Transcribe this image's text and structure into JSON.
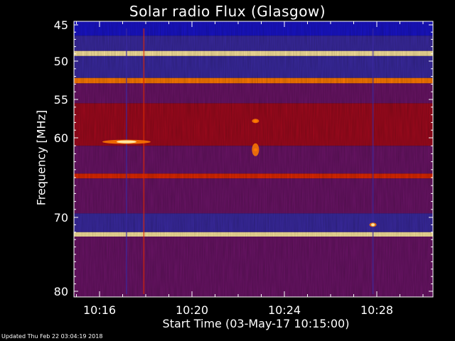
{
  "chart_data": {
    "type": "heatmap",
    "title": "Solar radio Flux (Glasgow)",
    "xlabel": "Start Time (03-May-17 10:15:00)",
    "ylabel": "Frequency [MHz]",
    "footer": "Updated Thu Feb 22 03:04:19 2018",
    "x_range_minutes": [
      10.25,
      10.513
    ],
    "y_range_mhz": [
      45,
      80
    ],
    "x_ticks": [
      "10:16",
      "10:20",
      "10:24",
      "10:28"
    ],
    "x_tick_values": [
      "10:16",
      "10:20",
      "10:24",
      "10:28"
    ],
    "y_ticks": [
      45,
      50,
      55,
      60,
      70,
      80
    ],
    "colormap": [
      "#000033",
      "#1a14c8",
      "#3a2aa0",
      "#6a1466",
      "#a00a1e",
      "#e02800",
      "#ff7a00",
      "#ffe8a0"
    ],
    "bands": [
      {
        "from_mhz": 45,
        "to_mhz": 46.5,
        "level": 0.1
      },
      {
        "from_mhz": 46.5,
        "to_mhz": 48.6,
        "level": 0.22
      },
      {
        "from_mhz": 48.6,
        "to_mhz": 49.3,
        "level": 1.0
      },
      {
        "from_mhz": 49.3,
        "to_mhz": 52.2,
        "level": 0.25
      },
      {
        "from_mhz": 52.2,
        "to_mhz": 52.9,
        "level": 0.85
      },
      {
        "from_mhz": 52.9,
        "to_mhz": 55.5,
        "level": 0.45
      },
      {
        "from_mhz": 55.5,
        "to_mhz": 61,
        "level": 0.5
      },
      {
        "from_mhz": 61,
        "to_mhz": 64.5,
        "level": 0.48
      },
      {
        "from_mhz": 64.5,
        "to_mhz": 65.1,
        "level": 0.7
      },
      {
        "from_mhz": 65.1,
        "to_mhz": 69.5,
        "level": 0.42
      },
      {
        "from_mhz": 69.5,
        "to_mhz": 72,
        "level": 0.33
      },
      {
        "from_mhz": 72,
        "to_mhz": 72.6,
        "level": 0.95
      },
      {
        "from_mhz": 72.6,
        "to_mhz": 80,
        "level": 0.46
      }
    ],
    "bursts": [
      {
        "time": "10:17:10",
        "mhz": 60.5,
        "level": 1.0
      },
      {
        "time": "10:22:45",
        "mhz": 57.8,
        "level": 0.9
      },
      {
        "time": "10:22:45",
        "mhz": 61.5,
        "level": 0.85
      },
      {
        "time": "10:27:50",
        "mhz": 71.0,
        "level": 1.0
      }
    ]
  }
}
